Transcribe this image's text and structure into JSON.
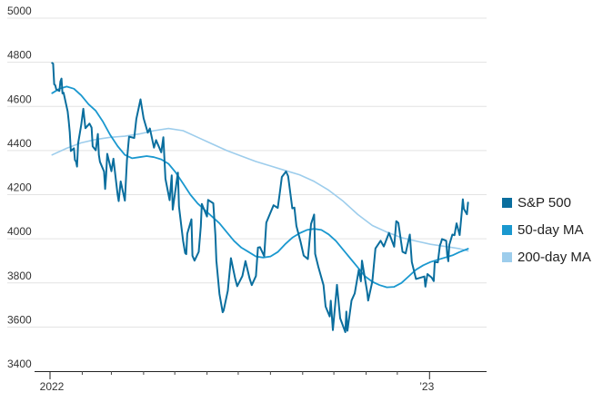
{
  "chart_data": {
    "type": "line",
    "title": "",
    "xlabel": "",
    "ylabel": "",
    "ylim": [
      3400,
      5000
    ],
    "yticks": [
      3400,
      3600,
      3800,
      4000,
      4200,
      4400,
      4600,
      4800,
      5000
    ],
    "xlim": [
      "2022-01-01",
      "2023-01-20"
    ],
    "x_tick_labels": [
      {
        "date": "2022-01-01",
        "label": "2022"
      },
      {
        "date": "2023-01-01",
        "label": "’23"
      }
    ],
    "x_minor_tick_dates": [
      "2022-02-01",
      "2022-03-01",
      "2022-04-01",
      "2022-05-01",
      "2022-06-01",
      "2022-07-01",
      "2022-08-01",
      "2022-09-01",
      "2022-10-01",
      "2022-11-01",
      "2022-12-01"
    ],
    "grid": "horizontal",
    "legend_position": "right",
    "series": [
      {
        "name": "S&P 500",
        "color": "#0a6e9e",
        "points": [
          [
            "2022-01-03",
            4797
          ],
          [
            "2022-01-04",
            4794
          ],
          [
            "2022-01-05",
            4700
          ],
          [
            "2022-01-06",
            4696
          ],
          [
            "2022-01-07",
            4677
          ],
          [
            "2022-01-10",
            4670
          ],
          [
            "2022-01-11",
            4713
          ],
          [
            "2022-01-12",
            4726
          ],
          [
            "2022-01-13",
            4659
          ],
          [
            "2022-01-14",
            4662
          ],
          [
            "2022-01-18",
            4577
          ],
          [
            "2022-01-19",
            4532
          ],
          [
            "2022-01-20",
            4483
          ],
          [
            "2022-01-21",
            4398
          ],
          [
            "2022-01-24",
            4410
          ],
          [
            "2022-01-25",
            4357
          ],
          [
            "2022-01-26",
            4350
          ],
          [
            "2022-01-27",
            4327
          ],
          [
            "2022-01-28",
            4432
          ],
          [
            "2022-01-31",
            4516
          ],
          [
            "2022-02-02",
            4589
          ],
          [
            "2022-02-04",
            4501
          ],
          [
            "2022-02-08",
            4522
          ],
          [
            "2022-02-10",
            4504
          ],
          [
            "2022-02-11",
            4419
          ],
          [
            "2022-02-14",
            4401
          ],
          [
            "2022-02-16",
            4475
          ],
          [
            "2022-02-17",
            4380
          ],
          [
            "2022-02-18",
            4349
          ],
          [
            "2022-02-22",
            4305
          ],
          [
            "2022-02-23",
            4226
          ],
          [
            "2022-02-24",
            4288
          ],
          [
            "2022-02-25",
            4385
          ],
          [
            "2022-03-01",
            4306
          ],
          [
            "2022-03-03",
            4363
          ],
          [
            "2022-03-07",
            4201
          ],
          [
            "2022-03-08",
            4171
          ],
          [
            "2022-03-10",
            4260
          ],
          [
            "2022-03-14",
            4173
          ],
          [
            "2022-03-16",
            4357
          ],
          [
            "2022-03-18",
            4463
          ],
          [
            "2022-03-23",
            4457
          ],
          [
            "2022-03-25",
            4543
          ],
          [
            "2022-03-29",
            4632
          ],
          [
            "2022-04-01",
            4546
          ],
          [
            "2022-04-05",
            4481
          ],
          [
            "2022-04-07",
            4500
          ],
          [
            "2022-04-11",
            4413
          ],
          [
            "2022-04-13",
            4447
          ],
          [
            "2022-04-18",
            4392
          ],
          [
            "2022-04-20",
            4460
          ],
          [
            "2022-04-22",
            4272
          ],
          [
            "2022-04-26",
            4175
          ],
          [
            "2022-04-28",
            4287
          ],
          [
            "2022-04-29",
            4132
          ],
          [
            "2022-05-04",
            4300
          ],
          [
            "2022-05-05",
            4146
          ],
          [
            "2022-05-09",
            3991
          ],
          [
            "2022-05-11",
            3935
          ],
          [
            "2022-05-12",
            3930
          ],
          [
            "2022-05-13",
            4023
          ],
          [
            "2022-05-17",
            4088
          ],
          [
            "2022-05-18",
            3923
          ],
          [
            "2022-05-20",
            3901
          ],
          [
            "2022-05-24",
            3941
          ],
          [
            "2022-05-26",
            4057
          ],
          [
            "2022-05-27",
            4158
          ],
          [
            "2022-06-01",
            4101
          ],
          [
            "2022-06-02",
            4176
          ],
          [
            "2022-06-07",
            4161
          ],
          [
            "2022-06-09",
            4017
          ],
          [
            "2022-06-10",
            3901
          ],
          [
            "2022-06-13",
            3750
          ],
          [
            "2022-06-16",
            3667
          ],
          [
            "2022-06-17",
            3675
          ],
          [
            "2022-06-21",
            3765
          ],
          [
            "2022-06-24",
            3912
          ],
          [
            "2022-06-28",
            3821
          ],
          [
            "2022-06-30",
            3785
          ],
          [
            "2022-07-05",
            3831
          ],
          [
            "2022-07-08",
            3899
          ],
          [
            "2022-07-12",
            3819
          ],
          [
            "2022-07-14",
            3790
          ],
          [
            "2022-07-18",
            3831
          ],
          [
            "2022-07-20",
            3960
          ],
          [
            "2022-07-22",
            3962
          ],
          [
            "2022-07-26",
            3921
          ],
          [
            "2022-07-28",
            4073
          ],
          [
            "2022-08-01",
            4119
          ],
          [
            "2022-08-04",
            4152
          ],
          [
            "2022-08-08",
            4140
          ],
          [
            "2022-08-10",
            4210
          ],
          [
            "2022-08-12",
            4280
          ],
          [
            "2022-08-16",
            4305
          ],
          [
            "2022-08-18",
            4284
          ],
          [
            "2022-08-22",
            4138
          ],
          [
            "2022-08-24",
            4141
          ],
          [
            "2022-08-26",
            4058
          ],
          [
            "2022-08-30",
            3986
          ],
          [
            "2022-09-02",
            3924
          ],
          [
            "2022-09-06",
            3908
          ],
          [
            "2022-09-09",
            4067
          ],
          [
            "2022-09-12",
            4110
          ],
          [
            "2022-09-13",
            3932
          ],
          [
            "2022-09-16",
            3873
          ],
          [
            "2022-09-21",
            3790
          ],
          [
            "2022-09-23",
            3693
          ],
          [
            "2022-09-27",
            3648
          ],
          [
            "2022-09-28",
            3719
          ],
          [
            "2022-09-30",
            3586
          ],
          [
            "2022-10-04",
            3791
          ],
          [
            "2022-10-07",
            3640
          ],
          [
            "2022-10-12",
            3577
          ],
          [
            "2022-10-13",
            3670
          ],
          [
            "2022-10-14",
            3583
          ],
          [
            "2022-10-18",
            3720
          ],
          [
            "2022-10-21",
            3752
          ],
          [
            "2022-10-25",
            3859
          ],
          [
            "2022-10-27",
            3807
          ],
          [
            "2022-10-28",
            3901
          ],
          [
            "2022-11-02",
            3759
          ],
          [
            "2022-11-03",
            3720
          ],
          [
            "2022-11-07",
            3807
          ],
          [
            "2022-11-10",
            3956
          ],
          [
            "2022-11-15",
            3991
          ],
          [
            "2022-11-18",
            3965
          ],
          [
            "2022-11-23",
            4027
          ],
          [
            "2022-11-28",
            3964
          ],
          [
            "2022-11-30",
            4080
          ],
          [
            "2022-12-02",
            4072
          ],
          [
            "2022-12-06",
            3941
          ],
          [
            "2022-12-09",
            3934
          ],
          [
            "2022-12-13",
            4019
          ],
          [
            "2022-12-15",
            3895
          ],
          [
            "2022-12-19",
            3818
          ],
          [
            "2022-12-22",
            3822
          ],
          [
            "2022-12-27",
            3829
          ],
          [
            "2022-12-28",
            3783
          ],
          [
            "2022-12-30",
            3840
          ],
          [
            "2023-01-03",
            3824
          ],
          [
            "2023-01-05",
            3808
          ],
          [
            "2023-01-06",
            3895
          ],
          [
            "2023-01-09",
            3893
          ],
          [
            "2023-01-11",
            3970
          ],
          [
            "2023-01-12",
            3983
          ],
          [
            "2023-01-13",
            3999
          ],
          [
            "2023-01-17",
            3991
          ],
          [
            "2023-01-18",
            3928
          ],
          [
            "2023-01-19",
            3898
          ],
          [
            "2023-01-20",
            3972
          ],
          [
            "2023-01-23",
            4019
          ],
          [
            "2023-01-25",
            4016
          ],
          [
            "2023-01-27",
            4070
          ],
          [
            "2023-01-30",
            4017
          ],
          [
            "2023-02-01",
            4119
          ],
          [
            "2023-02-02",
            4179
          ],
          [
            "2023-02-03",
            4136
          ],
          [
            "2023-02-06",
            4111
          ],
          [
            "2023-02-07",
            4164
          ]
        ]
      },
      {
        "name": "50-day MA",
        "color": "#1a98cf",
        "points": [
          [
            "2022-01-03",
            4660
          ],
          [
            "2022-01-10",
            4680
          ],
          [
            "2022-01-17",
            4690
          ],
          [
            "2022-01-24",
            4680
          ],
          [
            "2022-01-31",
            4650
          ],
          [
            "2022-02-07",
            4610
          ],
          [
            "2022-02-14",
            4580
          ],
          [
            "2022-02-21",
            4530
          ],
          [
            "2022-02-28",
            4470
          ],
          [
            "2022-03-07",
            4420
          ],
          [
            "2022-03-14",
            4380
          ],
          [
            "2022-03-21",
            4365
          ],
          [
            "2022-03-28",
            4370
          ],
          [
            "2022-04-04",
            4375
          ],
          [
            "2022-04-11",
            4370
          ],
          [
            "2022-04-18",
            4360
          ],
          [
            "2022-04-25",
            4340
          ],
          [
            "2022-05-02",
            4300
          ],
          [
            "2022-05-09",
            4250
          ],
          [
            "2022-05-16",
            4200
          ],
          [
            "2022-05-23",
            4160
          ],
          [
            "2022-05-30",
            4130
          ],
          [
            "2022-06-06",
            4100
          ],
          [
            "2022-06-13",
            4070
          ],
          [
            "2022-06-20",
            4030
          ],
          [
            "2022-06-27",
            3990
          ],
          [
            "2022-07-04",
            3960
          ],
          [
            "2022-07-11",
            3940
          ],
          [
            "2022-07-18",
            3920
          ],
          [
            "2022-07-25",
            3915
          ],
          [
            "2022-08-01",
            3920
          ],
          [
            "2022-08-08",
            3940
          ],
          [
            "2022-08-15",
            3975
          ],
          [
            "2022-08-22",
            4005
          ],
          [
            "2022-08-29",
            4025
          ],
          [
            "2022-09-05",
            4040
          ],
          [
            "2022-09-12",
            4045
          ],
          [
            "2022-09-19",
            4040
          ],
          [
            "2022-09-26",
            4020
          ],
          [
            "2022-10-03",
            3990
          ],
          [
            "2022-10-10",
            3950
          ],
          [
            "2022-10-17",
            3910
          ],
          [
            "2022-10-24",
            3870
          ],
          [
            "2022-10-31",
            3830
          ],
          [
            "2022-11-07",
            3805
          ],
          [
            "2022-11-14",
            3790
          ],
          [
            "2022-11-21",
            3780
          ],
          [
            "2022-11-28",
            3782
          ],
          [
            "2022-12-05",
            3800
          ],
          [
            "2022-12-12",
            3830
          ],
          [
            "2022-12-19",
            3860
          ],
          [
            "2022-12-26",
            3880
          ],
          [
            "2023-01-02",
            3895
          ],
          [
            "2023-01-09",
            3905
          ],
          [
            "2023-01-16",
            3915
          ],
          [
            "2023-01-23",
            3925
          ],
          [
            "2023-01-30",
            3940
          ],
          [
            "2023-02-07",
            3955
          ]
        ]
      },
      {
        "name": "200-day MA",
        "color": "#9dcdec",
        "points": [
          [
            "2022-01-03",
            4380
          ],
          [
            "2022-01-17",
            4410
          ],
          [
            "2022-01-31",
            4435
          ],
          [
            "2022-02-14",
            4450
          ],
          [
            "2022-02-28",
            4460
          ],
          [
            "2022-03-14",
            4465
          ],
          [
            "2022-03-28",
            4475
          ],
          [
            "2022-04-11",
            4490
          ],
          [
            "2022-04-25",
            4500
          ],
          [
            "2022-05-09",
            4490
          ],
          [
            "2022-05-23",
            4460
          ],
          [
            "2022-06-06",
            4430
          ],
          [
            "2022-06-20",
            4400
          ],
          [
            "2022-07-04",
            4375
          ],
          [
            "2022-07-18",
            4350
          ],
          [
            "2022-08-01",
            4330
          ],
          [
            "2022-08-15",
            4310
          ],
          [
            "2022-08-29",
            4290
          ],
          [
            "2022-09-12",
            4260
          ],
          [
            "2022-09-26",
            4220
          ],
          [
            "2022-10-10",
            4170
          ],
          [
            "2022-10-24",
            4110
          ],
          [
            "2022-11-07",
            4060
          ],
          [
            "2022-11-21",
            4030
          ],
          [
            "2022-12-05",
            4005
          ],
          [
            "2022-12-19",
            3990
          ],
          [
            "2023-01-02",
            3975
          ],
          [
            "2023-01-16",
            3965
          ],
          [
            "2023-01-30",
            3955
          ],
          [
            "2023-02-07",
            3945
          ]
        ]
      }
    ]
  }
}
